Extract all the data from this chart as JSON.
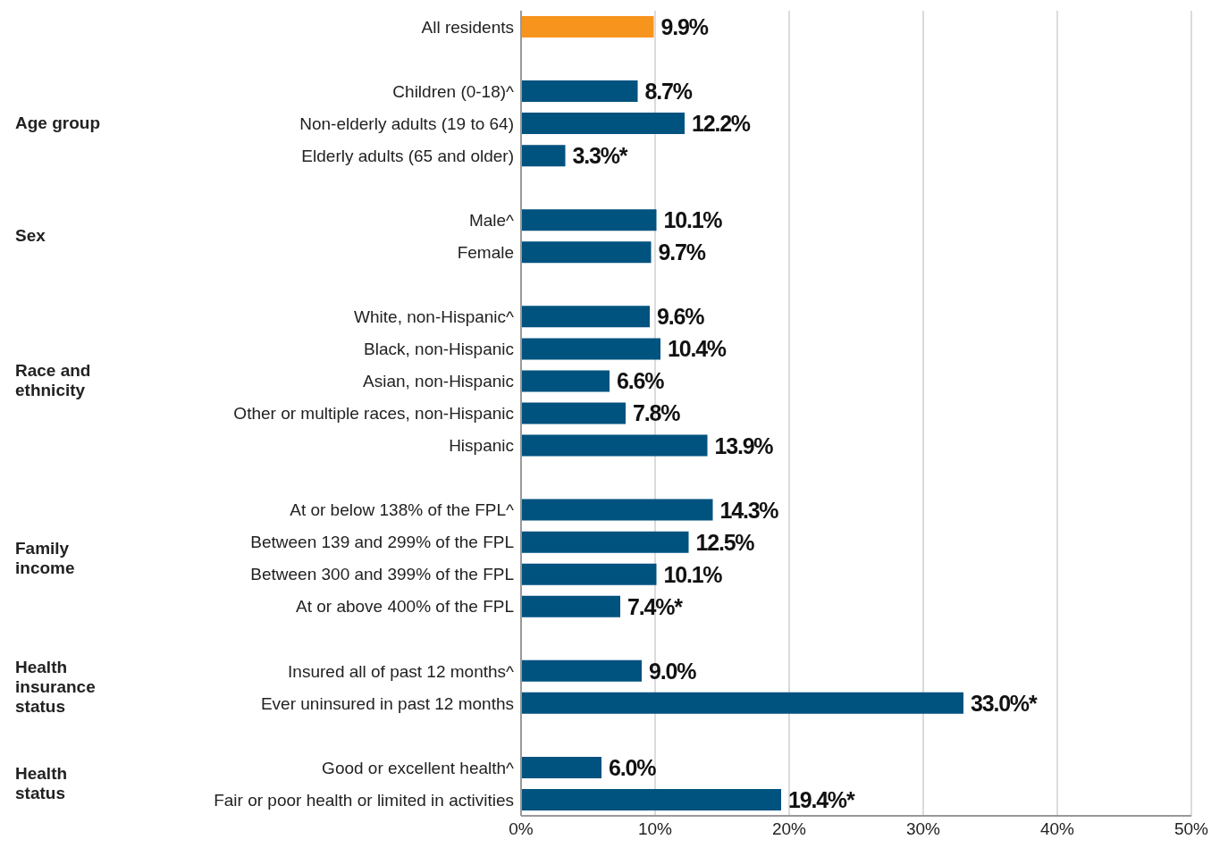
{
  "chart_data": {
    "type": "bar",
    "orientation": "horizontal",
    "categories": [
      "All residents",
      null,
      "Children (0-18)^",
      "Non-elderly adults (19 to 64)",
      "Elderly adults (65 and older)",
      null,
      "Male^",
      "Female",
      null,
      "White, non-Hispanic^",
      "Black, non-Hispanic",
      "Asian, non-Hispanic",
      "Other or multiple races, non-Hispanic",
      "Hispanic",
      null,
      "At or below 138% of the FPL^",
      "Between 139 and 299% of the FPL",
      "Between 300 and 399% of the FPL",
      "At or above 400% of the FPL",
      null,
      "Insured all of past 12 months^",
      "Ever uninsured in past 12 months",
      null,
      "Good or excellent health^",
      "Fair or poor health or limited in activities"
    ],
    "values": [
      9.9,
      null,
      8.7,
      12.2,
      3.3,
      null,
      10.1,
      9.7,
      null,
      9.6,
      10.4,
      6.6,
      7.8,
      13.9,
      null,
      14.3,
      12.5,
      10.1,
      7.4,
      null,
      9.0,
      33.0,
      null,
      6.0,
      19.4
    ],
    "value_labels": [
      "9.9%",
      null,
      "8.7%",
      "12.2%",
      "3.3%*",
      null,
      "10.1%",
      "9.7%",
      null,
      "9.6%",
      "10.4%",
      "6.6%",
      "7.8%",
      "13.9%",
      null,
      "14.3%",
      "12.5%",
      "10.1%",
      "7.4%*",
      null,
      "9.0%",
      "33.0%*",
      null,
      "6.0%",
      "19.4%*"
    ],
    "colors": [
      "#f7941d",
      null,
      "#00527f",
      "#00527f",
      "#00527f",
      null,
      "#00527f",
      "#00527f",
      null,
      "#00527f",
      "#00527f",
      "#00527f",
      "#00527f",
      "#00527f",
      null,
      "#00527f",
      "#00527f",
      "#00527f",
      "#00527f",
      null,
      "#00527f",
      "#00527f",
      null,
      "#00527f",
      "#00527f"
    ],
    "annotations": [
      "Age group",
      "Sex",
      "Race and ethnicity",
      "Family income",
      "Health insurance status",
      "Health status"
    ],
    "xlim": [
      0,
      50
    ],
    "xticks": [
      {
        "value": 0,
        "label": "0%"
      },
      {
        "value": 10,
        "label": "10%"
      },
      {
        "value": 20,
        "label": "20%"
      },
      {
        "value": 30,
        "label": "30%"
      },
      {
        "value": 40,
        "label": "40%"
      },
      {
        "value": 50,
        "label": "50%"
      }
    ],
    "grid": "x"
  }
}
